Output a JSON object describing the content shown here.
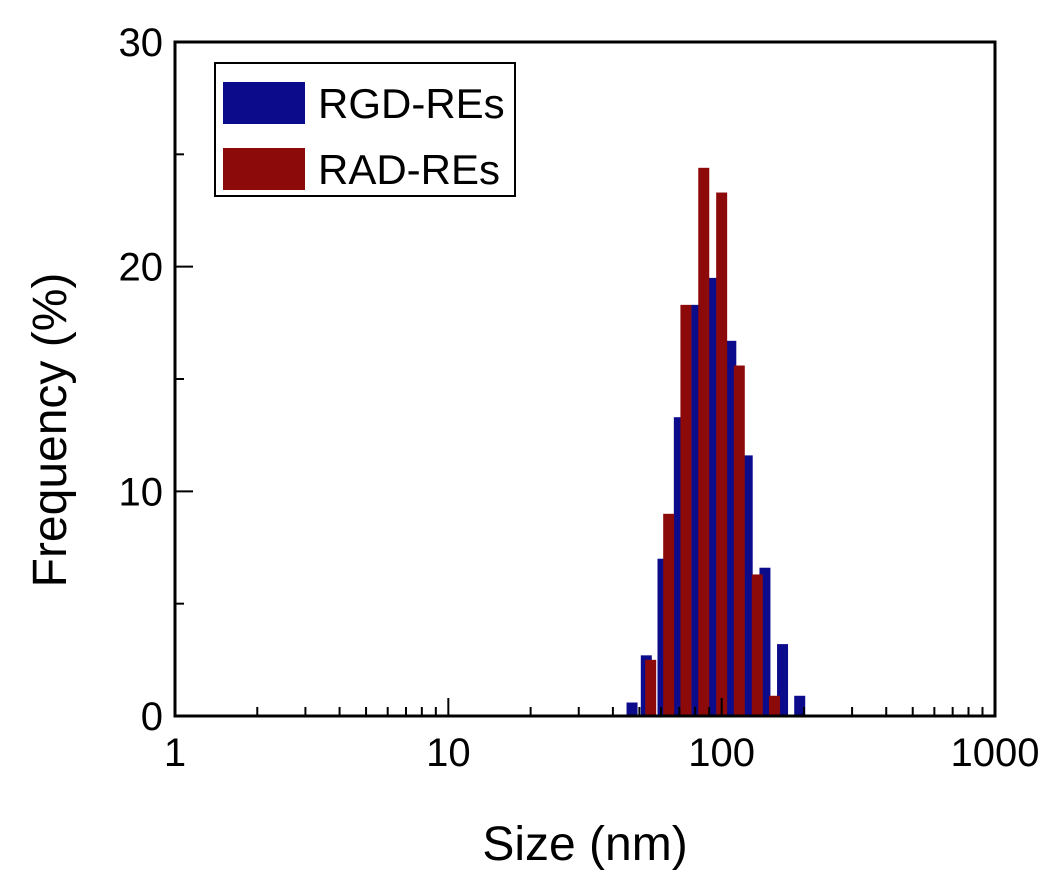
{
  "chart_data": {
    "type": "bar",
    "xlabel": "Size (nm)",
    "ylabel": "Frequency (%)",
    "xscale": "log",
    "xlim": [
      1,
      1000
    ],
    "ylim": [
      0,
      30
    ],
    "x_ticks": [
      "1",
      "10",
      "100",
      "1000"
    ],
    "y_ticks": [
      "0",
      "10",
      "20",
      "30"
    ],
    "grid": false,
    "legend_position": "top-left",
    "series": [
      {
        "name": "RGD-REs",
        "color": "#0b0b8c",
        "x": [
          47,
          53,
          61,
          70,
          81,
          94,
          108,
          124,
          144,
          167,
          193
        ],
        "values": [
          0.6,
          2.7,
          7.0,
          13.3,
          18.3,
          19.5,
          16.7,
          11.6,
          6.6,
          3.2,
          0.9
        ]
      },
      {
        "name": "RAD-REs",
        "color": "#8c0a0a",
        "x": [
          55,
          64,
          74,
          86,
          100,
          116,
          135,
          156
        ],
        "values": [
          2.5,
          9.0,
          18.3,
          24.4,
          23.3,
          15.6,
          6.3,
          0.9
        ]
      }
    ]
  }
}
